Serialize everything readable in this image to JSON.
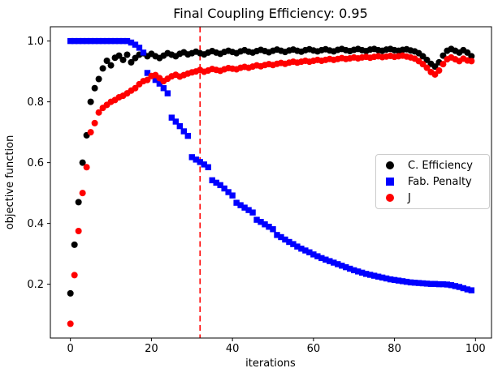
{
  "chart_data": {
    "type": "scatter",
    "title": "Final Coupling Efficiency: 0.95",
    "xlabel": "iterations",
    "ylabel": "objective function",
    "x_note": "x value = iteration index 0..99 for every series",
    "xlim": [
      -4.95,
      103.95
    ],
    "ylim": [
      0.023,
      1.047
    ],
    "xticks": [
      0,
      20,
      40,
      60,
      80,
      100
    ],
    "yticks": [
      0.2,
      0.4,
      0.6,
      0.8,
      1.0
    ],
    "grid": false,
    "legend_position": "center right",
    "vline": {
      "x": 32,
      "color": "#ff0000",
      "style": "dashed"
    },
    "series": [
      {
        "name": "C. Efficiency",
        "marker": "circle",
        "color": "#000000",
        "values": [
          0.17,
          0.33,
          0.47,
          0.6,
          0.69,
          0.8,
          0.845,
          0.875,
          0.91,
          0.935,
          0.92,
          0.945,
          0.952,
          0.938,
          0.955,
          0.93,
          0.944,
          0.955,
          0.96,
          0.95,
          0.958,
          0.95,
          0.944,
          0.952,
          0.96,
          0.955,
          0.95,
          0.958,
          0.963,
          0.956,
          0.96,
          0.965,
          0.96,
          0.956,
          0.962,
          0.967,
          0.962,
          0.958,
          0.964,
          0.968,
          0.964,
          0.96,
          0.966,
          0.97,
          0.965,
          0.962,
          0.967,
          0.971,
          0.967,
          0.963,
          0.968,
          0.972,
          0.968,
          0.964,
          0.969,
          0.972,
          0.968,
          0.965,
          0.97,
          0.973,
          0.969,
          0.966,
          0.97,
          0.973,
          0.969,
          0.966,
          0.971,
          0.974,
          0.97,
          0.967,
          0.971,
          0.974,
          0.97,
          0.967,
          0.972,
          0.974,
          0.97,
          0.968,
          0.972,
          0.974,
          0.97,
          0.968,
          0.971,
          0.973,
          0.969,
          0.966,
          0.96,
          0.95,
          0.938,
          0.925,
          0.916,
          0.93,
          0.952,
          0.968,
          0.974,
          0.968,
          0.962,
          0.97,
          0.962,
          0.95
        ]
      },
      {
        "name": "Fab. Penalty",
        "marker": "square",
        "color": "#0000ff",
        "values": [
          1.0,
          1.0,
          1.0,
          1.0,
          1.0,
          1.0,
          1.0,
          1.0,
          1.0,
          1.0,
          1.0,
          1.0,
          1.0,
          1.0,
          1.0,
          0.995,
          0.988,
          0.978,
          0.962,
          0.895,
          0.885,
          0.872,
          0.86,
          0.845,
          0.828,
          0.748,
          0.735,
          0.72,
          0.703,
          0.688,
          0.618,
          0.61,
          0.602,
          0.594,
          0.585,
          0.542,
          0.534,
          0.526,
          0.515,
          0.503,
          0.492,
          0.468,
          0.46,
          0.452,
          0.444,
          0.436,
          0.412,
          0.405,
          0.397,
          0.389,
          0.381,
          0.362,
          0.355,
          0.347,
          0.339,
          0.332,
          0.324,
          0.317,
          0.311,
          0.305,
          0.298,
          0.292,
          0.286,
          0.281,
          0.276,
          0.271,
          0.266,
          0.261,
          0.256,
          0.251,
          0.246,
          0.242,
          0.238,
          0.234,
          0.231,
          0.228,
          0.225,
          0.222,
          0.219,
          0.216,
          0.214,
          0.212,
          0.21,
          0.208,
          0.206,
          0.205,
          0.204,
          0.203,
          0.202,
          0.201,
          0.201,
          0.2,
          0.2,
          0.199,
          0.197,
          0.194,
          0.191,
          0.187,
          0.183,
          0.18
        ]
      },
      {
        "name": "J",
        "marker": "circle",
        "color": "#ff0000",
        "values": [
          0.07,
          0.23,
          0.375,
          0.5,
          0.585,
          0.7,
          0.73,
          0.765,
          0.78,
          0.79,
          0.8,
          0.806,
          0.815,
          0.82,
          0.828,
          0.837,
          0.845,
          0.858,
          0.868,
          0.872,
          0.885,
          0.888,
          0.878,
          0.868,
          0.876,
          0.884,
          0.889,
          0.883,
          0.888,
          0.893,
          0.897,
          0.9,
          0.905,
          0.899,
          0.903,
          0.908,
          0.905,
          0.902,
          0.907,
          0.911,
          0.909,
          0.907,
          0.912,
          0.915,
          0.912,
          0.916,
          0.92,
          0.917,
          0.921,
          0.924,
          0.921,
          0.925,
          0.928,
          0.925,
          0.929,
          0.932,
          0.929,
          0.932,
          0.935,
          0.932,
          0.935,
          0.938,
          0.935,
          0.938,
          0.941,
          0.938,
          0.941,
          0.944,
          0.941,
          0.943,
          0.946,
          0.943,
          0.946,
          0.948,
          0.945,
          0.948,
          0.95,
          0.947,
          0.949,
          0.951,
          0.948,
          0.95,
          0.952,
          0.949,
          0.946,
          0.942,
          0.934,
          0.924,
          0.912,
          0.898,
          0.89,
          0.903,
          0.924,
          0.94,
          0.946,
          0.94,
          0.934,
          0.942,
          0.936,
          0.934
        ]
      }
    ]
  }
}
